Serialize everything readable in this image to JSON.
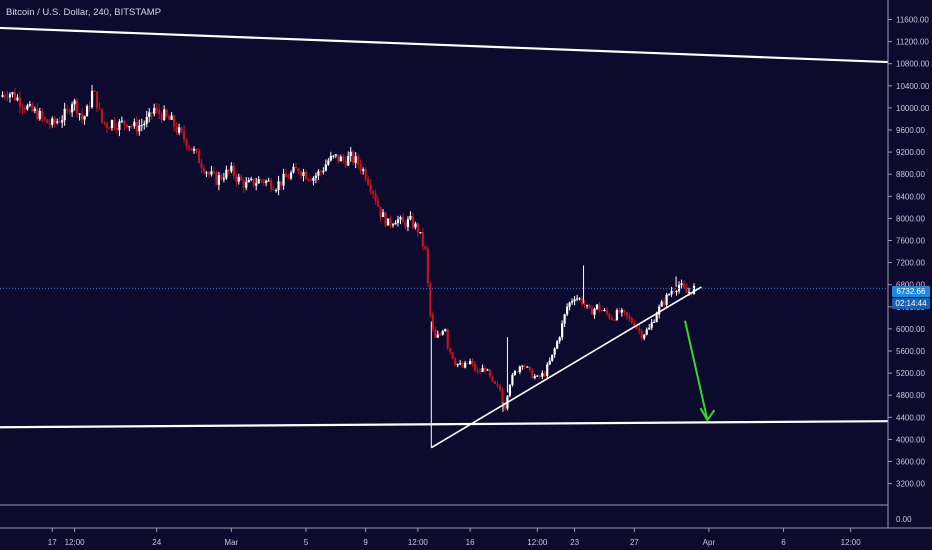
{
  "header": {
    "title": "Bitcoin / U.S. Dollar, 240, BITSTAMP"
  },
  "price_tags": {
    "last_price": "6732.66",
    "countdown": "02:14:44"
  },
  "colors": {
    "background": "#0c0a2d",
    "up_candle": "#ffffff",
    "down_candle": "#c0151b",
    "trendline": "#ffffff",
    "arrow": "#2fd82f",
    "price_line": "#3b7ad8",
    "axis_text": "#c8c8d8"
  },
  "chart_data": {
    "type": "candlestick",
    "title": "Bitcoin / U.S. Dollar, 240, BITSTAMP",
    "ylim": [
      3100,
      11850
    ],
    "y_ticks": [
      "11600.00",
      "11200.00",
      "10800.00",
      "10400.00",
      "10000.00",
      "9600.00",
      "9200.00",
      "8800.00",
      "8400.00",
      "8000.00",
      "7600.00",
      "7200.00",
      "6800.00",
      "6400.00",
      "6000.00",
      "5600.00",
      "5200.00",
      "4800.00",
      "4400.00",
      "4000.00",
      "3600.00",
      "3200.00"
    ],
    "volume_axis_tick": "0.00",
    "x_ticks": [
      {
        "label": "17",
        "day": 17
      },
      {
        "label": "12:00",
        "day": 18.5
      },
      {
        "label": "24",
        "day": 24
      },
      {
        "label": "Mar",
        "day": 29
      },
      {
        "label": "5",
        "day": 34
      },
      {
        "label": "9",
        "day": 38
      },
      {
        "label": "12:00",
        "day": 41.5
      },
      {
        "label": "16",
        "day": 45
      },
      {
        "label": "12:00",
        "day": 49.5
      },
      {
        "label": "23",
        "day": 52
      },
      {
        "label": "27",
        "day": 56
      },
      {
        "label": "Apr",
        "day": 61
      },
      {
        "label": "6",
        "day": 66
      },
      {
        "label": "12:00",
        "day": 70.5
      }
    ],
    "x_unit": "days since Feb 1 (Mar 1 = day 29)",
    "x_range_days": [
      13.5,
      73
    ],
    "close_path": [
      [
        13.5,
        10200
      ],
      [
        14,
        10300
      ],
      [
        14.3,
        10250
      ],
      [
        15,
        10100
      ],
      [
        15.5,
        9950
      ],
      [
        16,
        9900
      ],
      [
        16.5,
        9750
      ],
      [
        17,
        9700
      ],
      [
        17.5,
        9800
      ],
      [
        18,
        9900
      ],
      [
        18.3,
        10150
      ],
      [
        18.7,
        10000
      ],
      [
        19,
        9800
      ],
      [
        19.3,
        9900
      ],
      [
        19.7,
        10300
      ],
      [
        20,
        10100
      ],
      [
        20.3,
        9750
      ],
      [
        20.7,
        9700
      ],
      [
        21,
        9750
      ],
      [
        21.5,
        9700
      ],
      [
        22,
        9750
      ],
      [
        22.5,
        9650
      ],
      [
        23,
        9700
      ],
      [
        23.5,
        9800
      ],
      [
        23.8,
        10000
      ],
      [
        24,
        9900
      ],
      [
        24.3,
        9900
      ],
      [
        24.7,
        9800
      ],
      [
        25,
        9750
      ],
      [
        25.5,
        9550
      ],
      [
        26,
        9400
      ],
      [
        26.5,
        9200
      ],
      [
        27,
        9000
      ],
      [
        27.5,
        8800
      ],
      [
        28,
        8700
      ],
      [
        28.5,
        8800
      ],
      [
        29,
        8850
      ],
      [
        29.5,
        8700
      ],
      [
        30,
        8600
      ],
      [
        30.5,
        8650
      ],
      [
        31,
        8700
      ],
      [
        31.5,
        8650
      ],
      [
        32,
        8600
      ],
      [
        32.5,
        8700
      ],
      [
        33,
        8800
      ],
      [
        33.5,
        8900
      ],
      [
        34,
        8800
      ],
      [
        34.5,
        8750
      ],
      [
        35,
        8850
      ],
      [
        35.5,
        9050
      ],
      [
        36,
        9100
      ],
      [
        36.5,
        9050
      ],
      [
        37,
        9100
      ],
      [
        37.5,
        9000
      ],
      [
        38,
        8800
      ],
      [
        38.5,
        8500
      ],
      [
        39,
        8100
      ],
      [
        39.5,
        7900
      ],
      [
        40,
        8000
      ],
      [
        40.5,
        7900
      ],
      [
        41,
        7950
      ],
      [
        41.5,
        7800
      ],
      [
        42,
        7400
      ],
      [
        42.3,
        6300
      ],
      [
        42.6,
        5800
      ],
      [
        43,
        5900
      ],
      [
        43.3,
        6100
      ],
      [
        43.5,
        5700
      ],
      [
        44,
        5400
      ],
      [
        44.5,
        5300
      ],
      [
        45,
        5400
      ],
      [
        45.5,
        5200
      ],
      [
        46,
        5300
      ],
      [
        46.5,
        5000
      ],
      [
        47,
        4900
      ],
      [
        47.3,
        4550
      ],
      [
        47.6,
        5000
      ],
      [
        48,
        5200
      ],
      [
        48.5,
        5400
      ],
      [
        49,
        5200
      ],
      [
        49.5,
        5100
      ],
      [
        50,
        5200
      ],
      [
        50.5,
        5500
      ],
      [
        51,
        5900
      ],
      [
        51.5,
        6400
      ],
      [
        52,
        6600
      ],
      [
        52.5,
        6500
      ],
      [
        53,
        6300
      ],
      [
        53.5,
        6400
      ],
      [
        54,
        6300
      ],
      [
        54.5,
        6200
      ],
      [
        55,
        6300
      ],
      [
        55.5,
        6200
      ],
      [
        56,
        6100
      ],
      [
        56.5,
        5900
      ],
      [
        57,
        6000
      ],
      [
        57.5,
        6300
      ],
      [
        58,
        6500
      ],
      [
        58.5,
        6700
      ],
      [
        59,
        6800
      ],
      [
        59.5,
        6650
      ],
      [
        60,
        6732
      ]
    ],
    "spikes": [
      {
        "day": 42.4,
        "low": 3850
      },
      {
        "day": 47.2,
        "low": 4500
      },
      {
        "day": 47.5,
        "high": 5850
      },
      {
        "day": 52.6,
        "high": 7150
      },
      {
        "day": 58.8,
        "high": 6950
      }
    ],
    "last_price": 6732.66,
    "drawings": {
      "upper_trendline": {
        "from": [
          13.2,
          11450
        ],
        "to": [
          73,
          10830
        ]
      },
      "lower_horizontal": {
        "from": [
          13.2,
          4220
        ],
        "to": [
          73,
          4330
        ]
      },
      "rising_trendline": {
        "from": [
          42.4,
          3850
        ],
        "to": [
          60.5,
          6760
        ]
      },
      "arrow": {
        "from": [
          59.4,
          6150
        ],
        "to": [
          60.9,
          4350
        ],
        "direction": "down"
      }
    }
  }
}
